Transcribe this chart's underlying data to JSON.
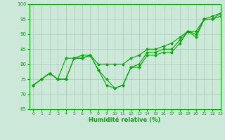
{
  "xlabel": "Humidité relative (%)",
  "ylabel": "",
  "xlim": [
    -0.5,
    23
  ],
  "ylim": [
    65,
    100
  ],
  "yticks": [
    65,
    70,
    75,
    80,
    85,
    90,
    95,
    100
  ],
  "xticks": [
    0,
    1,
    2,
    3,
    4,
    5,
    6,
    7,
    8,
    9,
    10,
    11,
    12,
    13,
    14,
    15,
    16,
    17,
    18,
    19,
    20,
    21,
    22,
    23
  ],
  "bg_color": "#cce8d8",
  "grid_color": "#aaccbb",
  "line_color": "#00aa00",
  "series": [
    [
      73,
      75,
      77,
      75,
      75,
      82,
      82,
      83,
      78,
      75,
      72,
      73,
      79,
      79,
      83,
      83,
      84,
      84,
      87,
      91,
      89,
      95,
      95,
      96
    ],
    [
      73,
      75,
      77,
      75,
      75,
      82,
      82,
      83,
      78,
      73,
      72,
      73,
      79,
      80,
      84,
      84,
      85,
      85,
      88,
      91,
      90,
      95,
      95,
      97
    ],
    [
      73,
      75,
      77,
      75,
      82,
      82,
      83,
      83,
      80,
      80,
      80,
      80,
      82,
      83,
      85,
      85,
      86,
      87,
      89,
      91,
      91,
      95,
      96,
      97
    ]
  ]
}
